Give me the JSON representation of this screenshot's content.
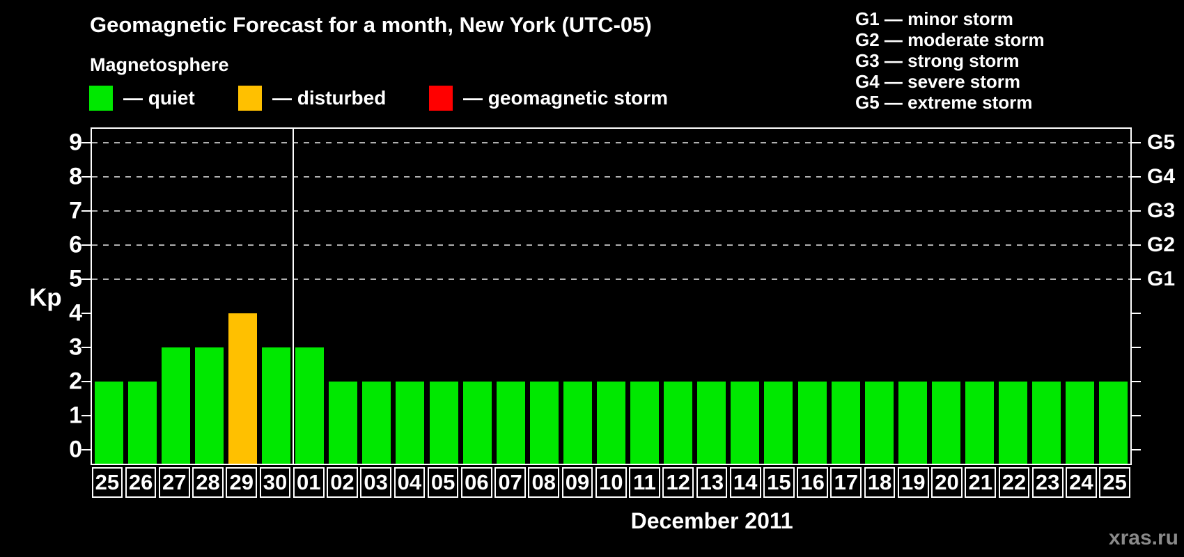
{
  "header": {
    "title": "Geomagnetic Forecast for a month, New York (UTC-05)",
    "subtitle": "Magnetosphere"
  },
  "legend": {
    "items": [
      {
        "id": "quiet",
        "label": "— quiet",
        "color": "#00e800"
      },
      {
        "id": "disturbed",
        "label": "— disturbed",
        "color": "#ffc000"
      },
      {
        "id": "storm",
        "label": "— geomagnetic storm",
        "color": "#ff0000"
      }
    ]
  },
  "g_legend": {
    "items": [
      "G1 — minor storm",
      "G2 — moderate storm",
      "G3 — strong storm",
      "G4 — severe storm",
      "G5 — extreme storm"
    ]
  },
  "footer": {
    "month_label": "December 2011",
    "watermark": "xras.ru"
  },
  "chart_data": {
    "type": "bar",
    "title": "Geomagnetic Forecast for a month, New York (UTC-05)",
    "xlabel": "December 2011",
    "ylabel": "Kp",
    "categories": [
      "25",
      "26",
      "27",
      "28",
      "29",
      "30",
      "01",
      "02",
      "03",
      "04",
      "05",
      "06",
      "07",
      "08",
      "09",
      "10",
      "11",
      "12",
      "13",
      "14",
      "15",
      "16",
      "17",
      "18",
      "19",
      "20",
      "21",
      "22",
      "23",
      "24",
      "25"
    ],
    "values": [
      2,
      2,
      3,
      3,
      4,
      3,
      3,
      2,
      2,
      2,
      2,
      2,
      2,
      2,
      2,
      2,
      2,
      2,
      2,
      2,
      2,
      2,
      2,
      2,
      2,
      2,
      2,
      2,
      2,
      2,
      2
    ],
    "statuses": [
      "quiet",
      "quiet",
      "quiet",
      "quiet",
      "disturbed",
      "quiet",
      "quiet",
      "quiet",
      "quiet",
      "quiet",
      "quiet",
      "quiet",
      "quiet",
      "quiet",
      "quiet",
      "quiet",
      "quiet",
      "quiet",
      "quiet",
      "quiet",
      "quiet",
      "quiet",
      "quiet",
      "quiet",
      "quiet",
      "quiet",
      "quiet",
      "quiet",
      "quiet",
      "quiet",
      "quiet"
    ],
    "bar_colors": {
      "quiet": "#00e800",
      "disturbed": "#ffc000",
      "storm": "#ff0000"
    },
    "ylim": [
      -0.4,
      9.4
    ],
    "y_ticks": [
      0,
      1,
      2,
      3,
      4,
      5,
      6,
      7,
      8,
      9
    ],
    "gridline_values": [
      5,
      6,
      7,
      8,
      9
    ],
    "gridline_style": "dashed gray",
    "right_axis_labels": [
      {
        "value": 5,
        "label": "G1"
      },
      {
        "value": 6,
        "label": "G2"
      },
      {
        "value": 7,
        "label": "G3"
      },
      {
        "value": 8,
        "label": "G4"
      },
      {
        "value": 9,
        "label": "G5"
      }
    ],
    "month_divider_after_index": 5,
    "legend_position": "top-left",
    "grid": "horizontal dashed lines at Kp 5-9 only"
  }
}
